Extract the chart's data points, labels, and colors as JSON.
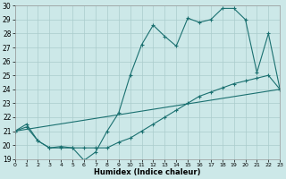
{
  "xlabel": "Humidex (Indice chaleur)",
  "xlim": [
    0,
    23
  ],
  "ylim": [
    19,
    30
  ],
  "xticks": [
    0,
    1,
    2,
    3,
    4,
    5,
    6,
    7,
    8,
    9,
    10,
    11,
    12,
    13,
    14,
    15,
    16,
    17,
    18,
    19,
    20,
    21,
    22,
    23
  ],
  "yticks": [
    19,
    20,
    21,
    22,
    23,
    24,
    25,
    26,
    27,
    28,
    29,
    30
  ],
  "background_color": "#cce8e8",
  "grid_color": "#aacccc",
  "line_color": "#1a7070",
  "line1_x": [
    0,
    1,
    2,
    3,
    4,
    5,
    6,
    7,
    8,
    9,
    10,
    11,
    12,
    13,
    14,
    15,
    16,
    17,
    18,
    19,
    20,
    21,
    22,
    23
  ],
  "line1_y": [
    21.0,
    21.5,
    20.3,
    19.8,
    19.8,
    19.8,
    18.9,
    19.5,
    21.0,
    22.3,
    25.0,
    27.2,
    28.6,
    27.8,
    27.1,
    29.1,
    28.8,
    29.0,
    29.8,
    29.8,
    29.0,
    25.2,
    28.0,
    24.0
  ],
  "line2_x": [
    0,
    23
  ],
  "line2_y": [
    21.0,
    24.0
  ],
  "line3_x": [
    0,
    1,
    2,
    3,
    4,
    5,
    6,
    7,
    8,
    9,
    10,
    11,
    12,
    13,
    14,
    15,
    16,
    17,
    18,
    19,
    20,
    21,
    22,
    23
  ],
  "line3_y": [
    21.0,
    21.3,
    20.3,
    19.8,
    19.9,
    19.8,
    19.8,
    19.8,
    19.8,
    20.2,
    20.5,
    21.0,
    21.5,
    22.0,
    22.5,
    23.0,
    23.5,
    23.8,
    24.1,
    24.4,
    24.6,
    24.8,
    25.0,
    24.0
  ]
}
